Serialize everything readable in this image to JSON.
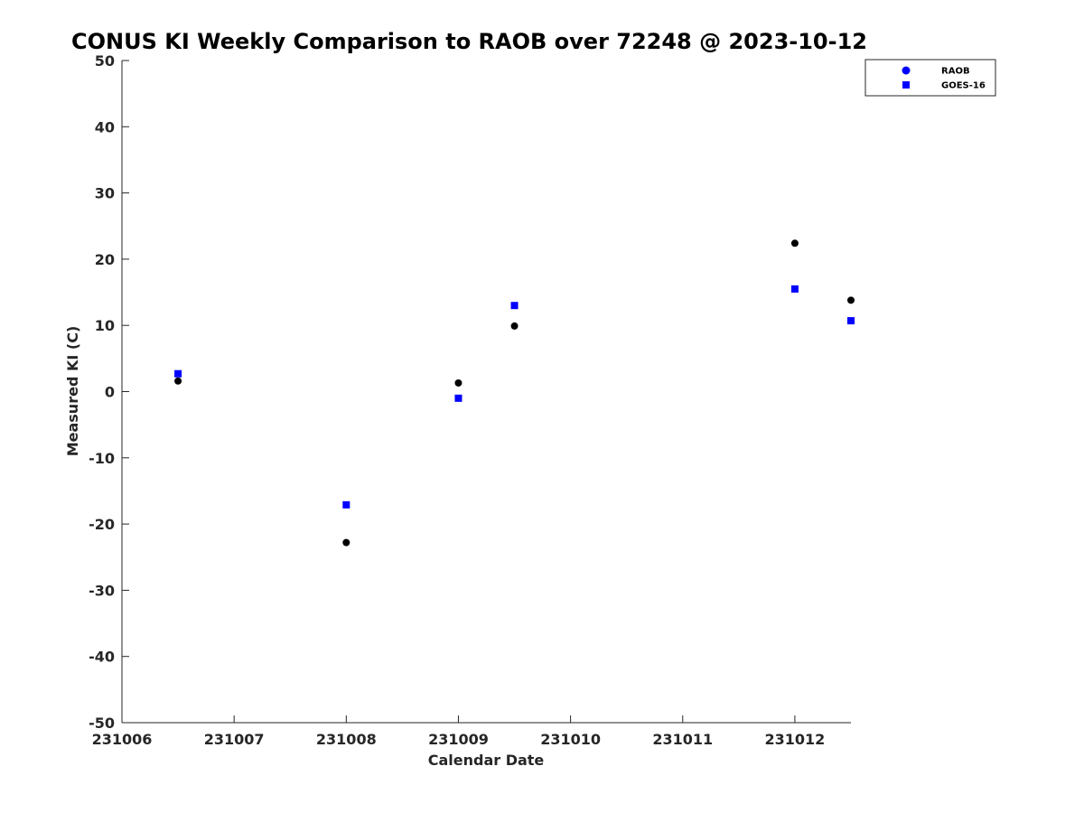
{
  "chart_data": {
    "type": "scatter",
    "title": "CONUS KI Weekly Comparison to RAOB over 72248 @ 2023-10-12",
    "xlabel": "Calendar Date",
    "ylabel": "Measured KI (C)",
    "xlim": [
      "231006",
      "231012.5"
    ],
    "ylim": [
      -50,
      50
    ],
    "x_ticks": [
      "231006",
      "231007",
      "231008",
      "231009",
      "231010",
      "231011",
      "231012"
    ],
    "y_ticks": [
      "50",
      "40",
      "30",
      "20",
      "10",
      "0",
      "-10",
      "-20",
      "-30",
      "-40",
      "-50"
    ],
    "grid": false,
    "legend_position": "top-right",
    "series": [
      {
        "name": "RAOB",
        "marker": "circle",
        "color": "#000000",
        "x": [
          231006.5,
          231008.0,
          231009.0,
          231009.5,
          231012.0,
          231012.5
        ],
        "y": [
          1.6,
          -22.8,
          1.3,
          9.9,
          22.4,
          13.8
        ]
      },
      {
        "name": "GOES-16",
        "marker": "square",
        "color": "#0000ff",
        "x": [
          231006.5,
          231008.0,
          231009.0,
          231009.5,
          231012.0,
          231012.5
        ],
        "y": [
          2.7,
          -17.1,
          -1.0,
          13.0,
          15.5,
          10.7
        ]
      }
    ]
  }
}
